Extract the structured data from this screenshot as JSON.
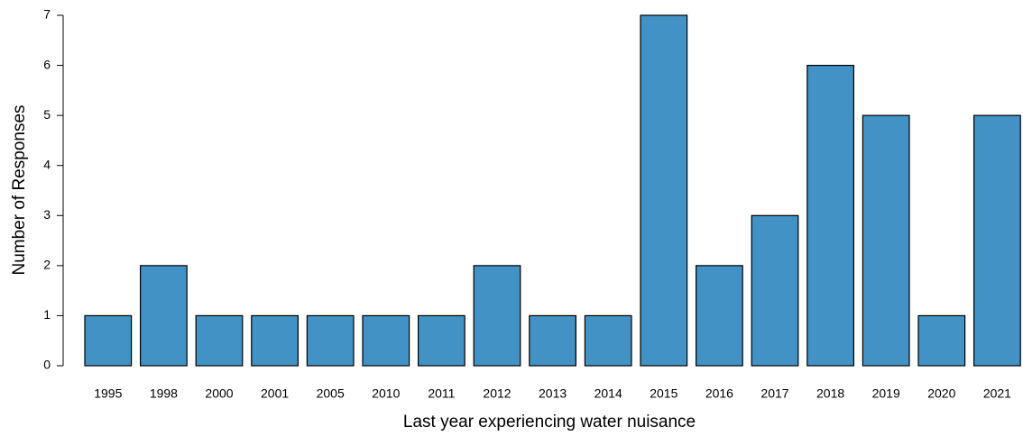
{
  "chart_data": {
    "type": "bar",
    "categories": [
      "1995",
      "1998",
      "2000",
      "2001",
      "2005",
      "2010",
      "2011",
      "2012",
      "2013",
      "2014",
      "2015",
      "2016",
      "2017",
      "2018",
      "2019",
      "2020",
      "2021"
    ],
    "values": [
      1,
      2,
      1,
      1,
      1,
      1,
      1,
      2,
      1,
      1,
      7,
      2,
      3,
      6,
      5,
      1,
      5
    ],
    "color": "#4292c6",
    "xlabel": "Last year experiencing water nuisance",
    "ylabel": "Number of Responses",
    "ylim": [
      0,
      7
    ],
    "yticks": [
      0,
      1,
      2,
      3,
      4,
      5,
      6,
      7
    ]
  }
}
